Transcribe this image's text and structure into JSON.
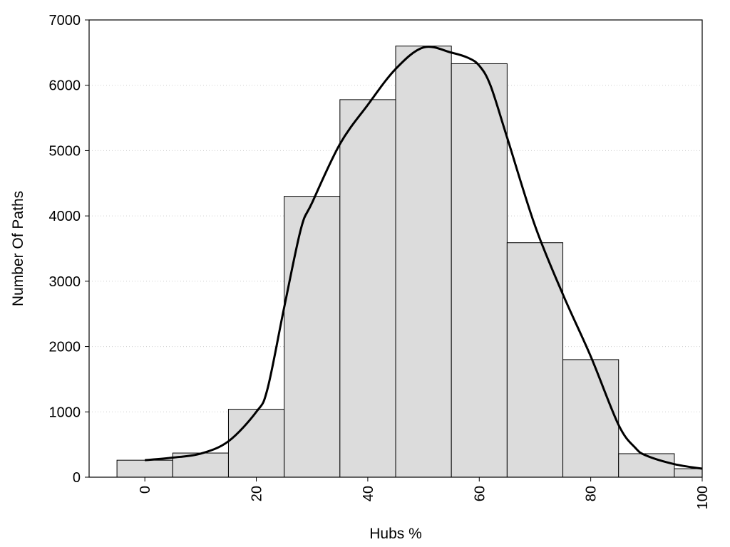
{
  "chart_data": {
    "type": "bar",
    "title": "",
    "xlabel": "Hubs %",
    "ylabel": "Number Of Paths",
    "xlim": [
      -10,
      100
    ],
    "ylim": [
      0,
      7000
    ],
    "grid": "horizontal dotted",
    "bar_color": "#dcdcdc",
    "edge_color": "#000000",
    "line_color": "#000000",
    "xticks": [
      "0",
      "20",
      "40",
      "60",
      "80",
      "100"
    ],
    "yticks": [
      "0",
      "1000",
      "2000",
      "3000",
      "4000",
      "5000",
      "6000",
      "7000"
    ],
    "bins": [
      {
        "x0": -5,
        "x1": 5,
        "value": 260
      },
      {
        "x0": 5,
        "x1": 15,
        "value": 370
      },
      {
        "x0": 15,
        "x1": 25,
        "value": 1040
      },
      {
        "x0": 25,
        "x1": 35,
        "value": 4300
      },
      {
        "x0": 35,
        "x1": 45,
        "value": 5780
      },
      {
        "x0": 45,
        "x1": 55,
        "value": 6600
      },
      {
        "x0": 55,
        "x1": 65,
        "value": 6330
      },
      {
        "x0": 65,
        "x1": 75,
        "value": 3590
      },
      {
        "x0": 75,
        "x1": 85,
        "value": 1800
      },
      {
        "x0": 85,
        "x1": 95,
        "value": 360
      },
      {
        "x0": 95,
        "x1": 100,
        "value": 130
      }
    ],
    "density_curve": {
      "x": [
        0,
        5,
        10,
        15,
        20,
        22,
        25,
        28,
        30,
        35,
        40,
        45,
        50,
        55,
        58,
        60,
        62,
        65,
        70,
        75,
        80,
        85,
        88,
        90,
        95,
        100
      ],
      "y": [
        260,
        300,
        360,
        550,
        1000,
        1350,
        2600,
        3800,
        4200,
        5100,
        5700,
        6250,
        6580,
        6500,
        6420,
        6300,
        6000,
        5200,
        3850,
        2800,
        1850,
        800,
        450,
        330,
        200,
        130
      ]
    }
  }
}
